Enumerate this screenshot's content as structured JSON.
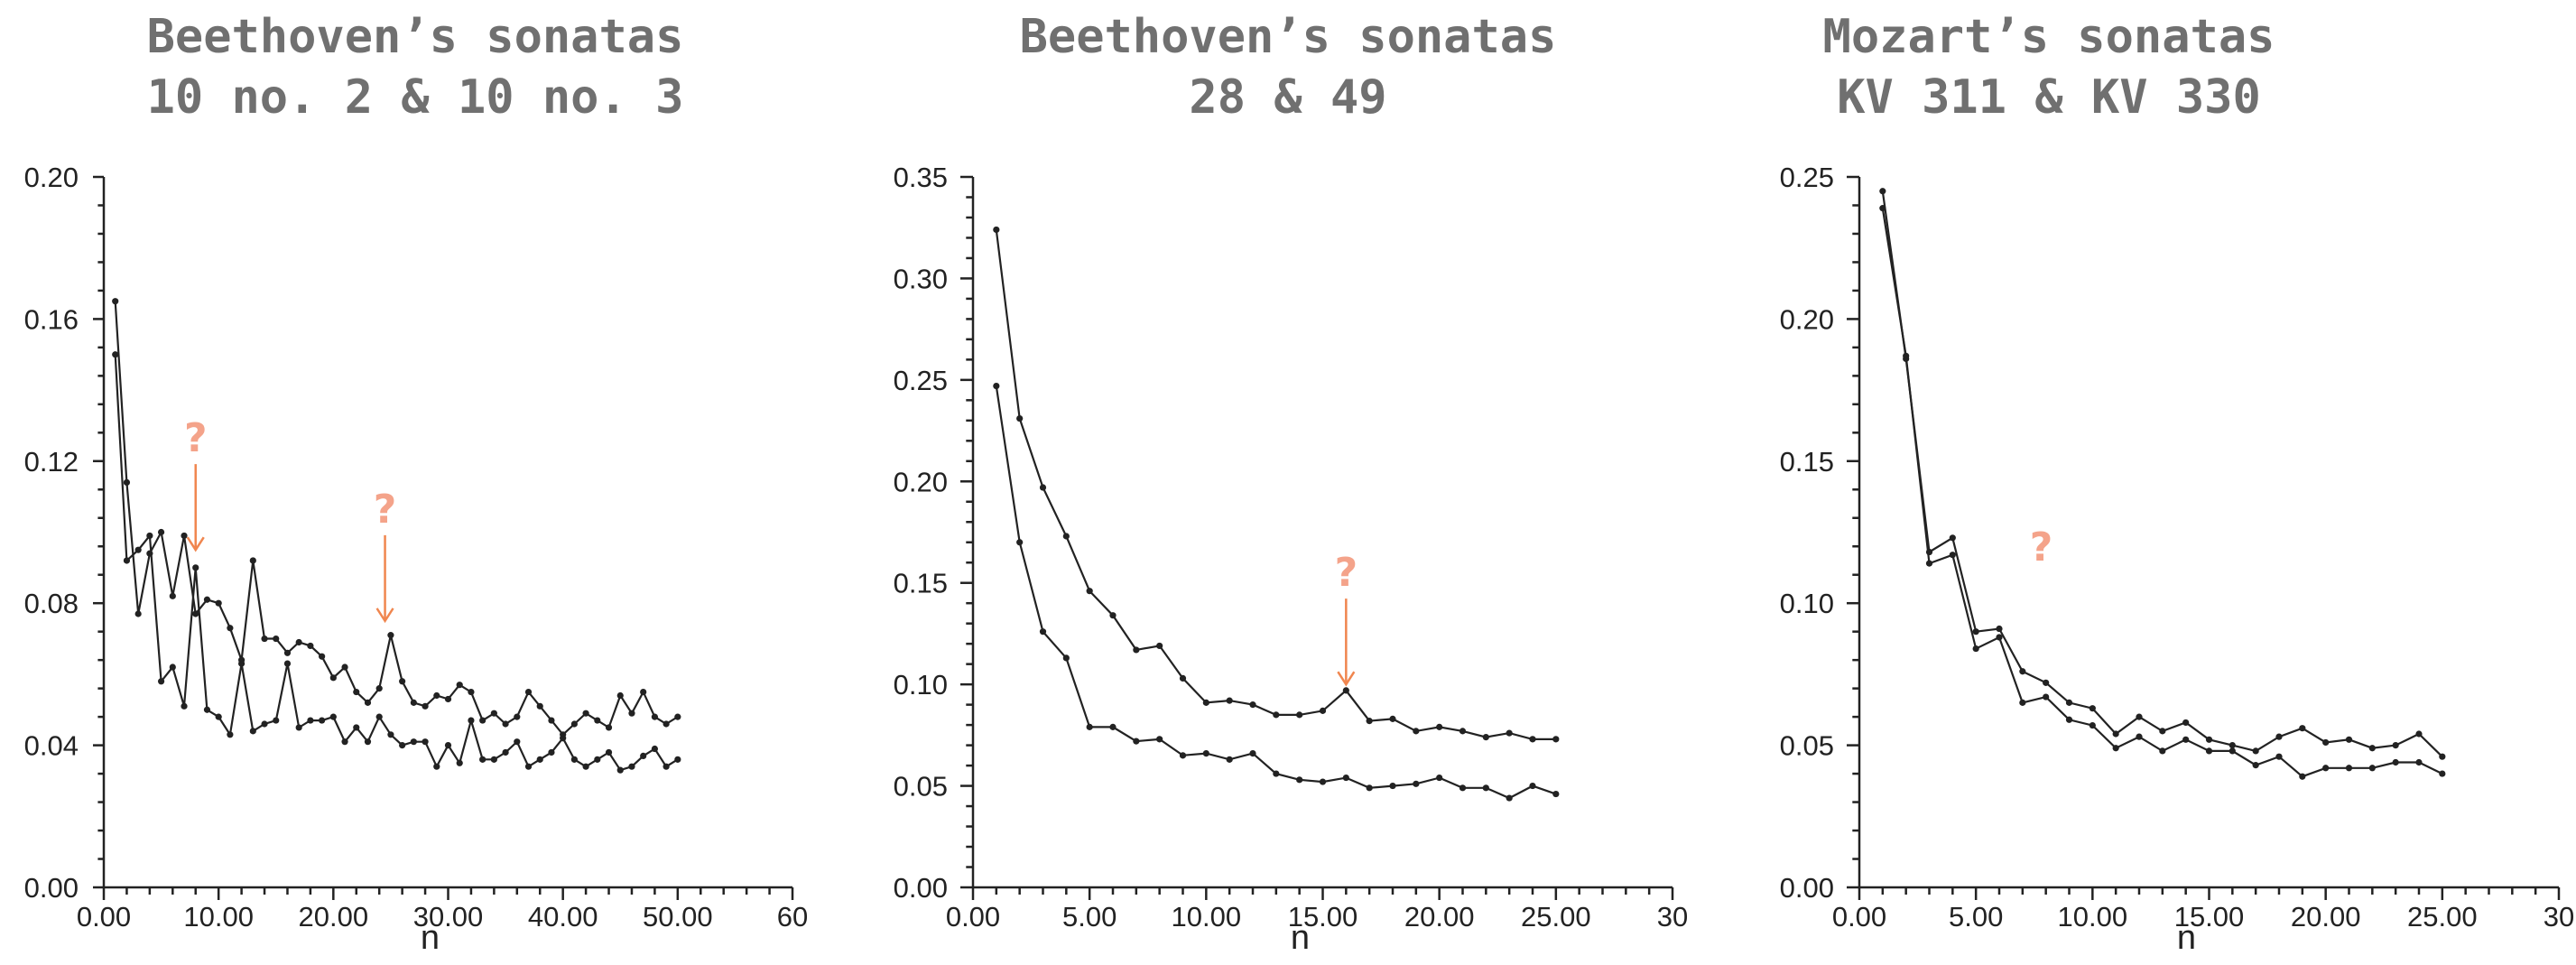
{
  "chart_data": [
    {
      "type": "line",
      "title": [
        "Beethoven’s sonatas",
        "10 no. 2 & 10 no. 3"
      ],
      "xlabel": "n",
      "ylabel": "",
      "xlim": [
        0,
        60
      ],
      "ylim": [
        0,
        0.2
      ],
      "x_ticks": [
        "0.00",
        "10.00",
        "20.00",
        "30.00",
        "40.00",
        "50.00",
        "60"
      ],
      "y_ticks": [
        "0.00",
        "0.04",
        "0.08",
        "0.12",
        "0.16",
        "0.20"
      ],
      "series": [
        {
          "x": [
            1,
            2,
            3,
            4,
            5,
            6,
            7,
            8,
            9,
            10,
            11,
            12,
            13,
            14,
            15,
            16,
            17,
            18,
            19,
            20,
            21,
            22,
            23,
            24,
            25,
            26,
            27,
            28,
            29,
            30,
            31,
            32,
            33,
            34,
            35,
            36,
            37,
            38,
            39,
            40,
            41,
            42,
            43,
            44,
            45,
            46,
            47,
            48,
            49,
            50
          ],
          "values": [
            0.165,
            0.114,
            0.077,
            0.094,
            0.1,
            0.082,
            0.099,
            0.077,
            0.081,
            0.08,
            0.073,
            0.064,
            0.092,
            0.07,
            0.07,
            0.066,
            0.069,
            0.068,
            0.065,
            0.059,
            0.062,
            0.055,
            0.052,
            0.056,
            0.071,
            0.058,
            0.052,
            0.051,
            0.054,
            0.053,
            0.057,
            0.055,
            0.047,
            0.049,
            0.046,
            0.048,
            0.055,
            0.051,
            0.047,
            0.043,
            0.046,
            0.049,
            0.047,
            0.045,
            0.054,
            0.049,
            0.055,
            0.048,
            0.046,
            0.048
          ]
        },
        {
          "x": [
            1,
            2,
            3,
            4,
            5,
            6,
            7,
            8,
            9,
            10,
            11,
            12,
            13,
            14,
            15,
            16,
            17,
            18,
            19,
            20,
            21,
            22,
            23,
            24,
            25,
            26,
            27,
            28,
            29,
            30,
            31,
            32,
            33,
            34,
            35,
            36,
            37,
            38,
            39,
            40,
            41,
            42,
            43,
            44,
            45,
            46,
            47,
            48,
            49,
            50
          ],
          "values": [
            0.15,
            0.092,
            0.095,
            0.099,
            0.058,
            0.062,
            0.051,
            0.09,
            0.05,
            0.048,
            0.043,
            0.063,
            0.044,
            0.046,
            0.047,
            0.063,
            0.045,
            0.047,
            0.047,
            0.048,
            0.041,
            0.045,
            0.041,
            0.048,
            0.043,
            0.04,
            0.041,
            0.041,
            0.034,
            0.04,
            0.035,
            0.047,
            0.036,
            0.036,
            0.038,
            0.041,
            0.034,
            0.036,
            0.038,
            0.042,
            0.036,
            0.034,
            0.036,
            0.038,
            0.033,
            0.034,
            0.037,
            0.039,
            0.034,
            0.036
          ]
        }
      ],
      "annotations": [
        {
          "text": "?",
          "x": 8,
          "y": 0.095
        },
        {
          "text": "?",
          "x": 24.5,
          "y": 0.075
        }
      ]
    },
    {
      "type": "line",
      "title": [
        "Beethoven’s sonatas",
        "28 & 49"
      ],
      "xlabel": "n",
      "ylabel": "",
      "xlim": [
        0,
        30
      ],
      "ylim": [
        0,
        0.35
      ],
      "x_ticks": [
        "0.00",
        "5.00",
        "10.00",
        "15.00",
        "20.00",
        "25.00",
        "30"
      ],
      "y_ticks": [
        "0.00",
        "0.05",
        "0.10",
        "0.15",
        "0.20",
        "0.25",
        "0.30",
        "0.35"
      ],
      "series": [
        {
          "x": [
            1,
            2,
            3,
            4,
            5,
            6,
            7,
            8,
            9,
            10,
            11,
            12,
            13,
            14,
            15,
            16,
            17,
            18,
            19,
            20,
            21,
            22,
            23,
            24,
            25
          ],
          "values": [
            0.324,
            0.231,
            0.197,
            0.173,
            0.146,
            0.134,
            0.117,
            0.119,
            0.103,
            0.091,
            0.092,
            0.09,
            0.085,
            0.085,
            0.087,
            0.097,
            0.082,
            0.083,
            0.077,
            0.079,
            0.077,
            0.074,
            0.076,
            0.073,
            0.073
          ]
        },
        {
          "x": [
            1,
            2,
            3,
            4,
            5,
            6,
            7,
            8,
            9,
            10,
            11,
            12,
            13,
            14,
            15,
            16,
            17,
            18,
            19,
            20,
            21,
            22,
            23,
            24,
            25
          ],
          "values": [
            0.247,
            0.17,
            0.126,
            0.113,
            0.079,
            0.079,
            0.072,
            0.073,
            0.065,
            0.066,
            0.063,
            0.066,
            0.056,
            0.053,
            0.052,
            0.054,
            0.049,
            0.05,
            0.051,
            0.054,
            0.049,
            0.049,
            0.044,
            0.05,
            0.046
          ]
        }
      ],
      "annotations": [
        {
          "text": "?",
          "x": 16,
          "y": 0.1
        }
      ]
    },
    {
      "type": "line",
      "title": [
        "Mozart’s sonatas",
        "KV 311 & KV 330"
      ],
      "xlabel": "n",
      "ylabel": "",
      "xlim": [
        0,
        30
      ],
      "ylim": [
        0,
        0.25
      ],
      "x_ticks": [
        "0.00",
        "5.00",
        "10.00",
        "15.00",
        "20.00",
        "25.00",
        "30"
      ],
      "y_ticks": [
        "0.00",
        "0.05",
        "0.10",
        "0.15",
        "0.20",
        "0.25"
      ],
      "series": [
        {
          "x": [
            1,
            2,
            3,
            4,
            5,
            6,
            7,
            8,
            9,
            10,
            11,
            12,
            13,
            14,
            15,
            16,
            17,
            18,
            19,
            20,
            21,
            22,
            23,
            24,
            25
          ],
          "values": [
            0.245,
            0.186,
            0.118,
            0.123,
            0.09,
            0.091,
            0.076,
            0.072,
            0.065,
            0.063,
            0.054,
            0.06,
            0.055,
            0.058,
            0.052,
            0.05,
            0.048,
            0.053,
            0.056,
            0.051,
            0.052,
            0.049,
            0.05,
            0.054,
            0.046
          ]
        },
        {
          "x": [
            1,
            2,
            3,
            4,
            5,
            6,
            7,
            8,
            9,
            10,
            11,
            12,
            13,
            14,
            15,
            16,
            17,
            18,
            19,
            20,
            21,
            22,
            23,
            24,
            25
          ],
          "values": [
            0.239,
            0.187,
            0.114,
            0.117,
            0.084,
            0.088,
            0.065,
            0.067,
            0.059,
            0.057,
            0.049,
            0.053,
            0.048,
            0.052,
            0.048,
            0.048,
            0.043,
            0.046,
            0.039,
            0.042,
            0.042,
            0.042,
            0.044,
            0.044,
            0.04
          ]
        }
      ],
      "annotations": [
        {
          "text": "?",
          "x": 7.8,
          "y": 0.115
        }
      ]
    }
  ]
}
